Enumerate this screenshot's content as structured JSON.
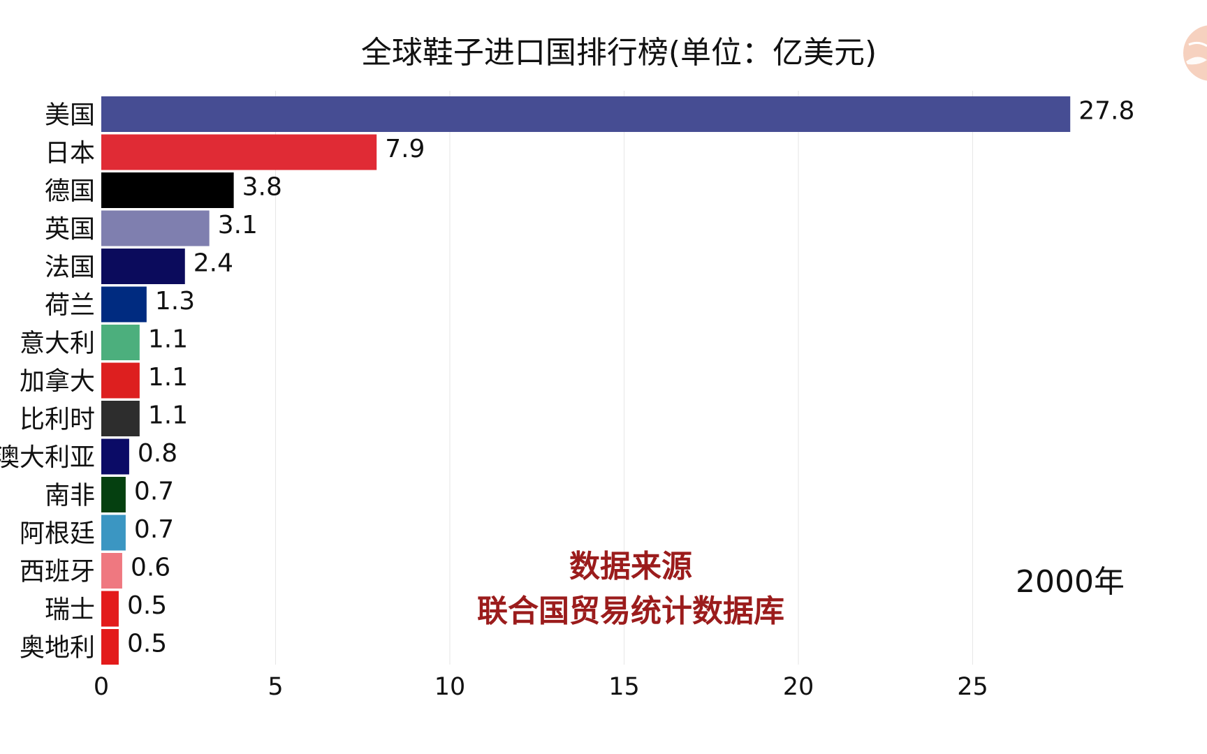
{
  "chart_data": {
    "type": "bar",
    "orientation": "horizontal",
    "title": "全球鞋子进口国排行榜(单位：亿美元)",
    "categories": [
      "美国",
      "日本",
      "德国",
      "英国",
      "法国",
      "荷兰",
      "意大利",
      "加拿大",
      "比利时",
      "澳大利亚",
      "南非",
      "阿根廷",
      "西班牙",
      "瑞士",
      "奥地利"
    ],
    "values": [
      27.8,
      7.9,
      3.8,
      3.1,
      2.4,
      1.3,
      1.1,
      1.1,
      1.1,
      0.8,
      0.7,
      0.7,
      0.6,
      0.5,
      0.5
    ],
    "value_labels": [
      "27.8",
      "7.9",
      "3.8",
      "3.1",
      "2.4",
      "1.3",
      "1.1",
      "1.1",
      "1.1",
      "0.8",
      "0.7",
      "0.7",
      "0.6",
      "0.5",
      "0.5"
    ],
    "colors": [
      "#464d93",
      "#e02b35",
      "#000000",
      "#7f7faf",
      "#0b0b5c",
      "#002b80",
      "#4caf7d",
      "#dd1f1f",
      "#2d2d2d",
      "#0b0b66",
      "#054010",
      "#3b96c2",
      "#ef7880",
      "#e31b1b",
      "#e31b1b"
    ],
    "x_ticks": [
      "0",
      "5",
      "10",
      "15",
      "20",
      "25"
    ],
    "xlim": [
      0,
      30
    ],
    "grid": true,
    "source_line1": "数据来源",
    "source_line2": "联合国贸易统计数据库",
    "year_label": "2000年"
  }
}
